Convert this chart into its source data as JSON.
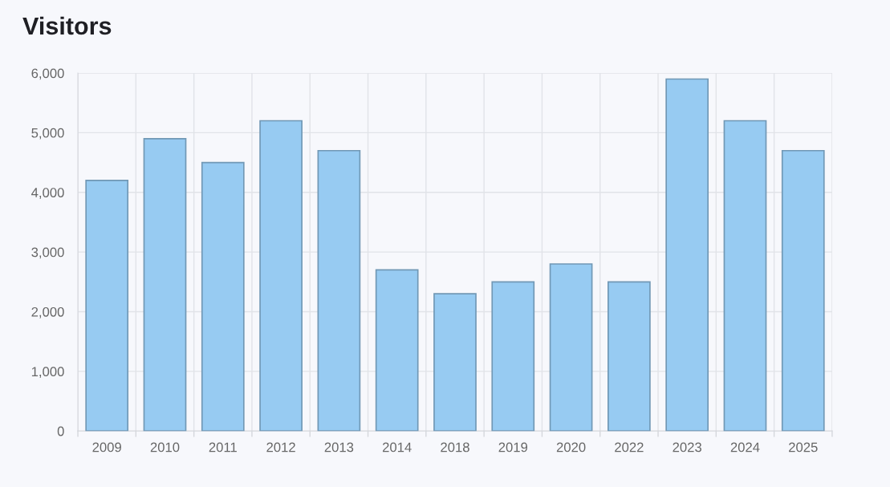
{
  "chart_data": {
    "type": "bar",
    "title": "Visitors",
    "categories": [
      "2009",
      "2010",
      "2011",
      "2012",
      "2013",
      "2014",
      "2018",
      "2019",
      "2020",
      "2022",
      "2023",
      "2024",
      "2025"
    ],
    "values": [
      4200,
      4900,
      4500,
      5200,
      4700,
      2700,
      2300,
      2500,
      2800,
      2500,
      5900,
      5200,
      4700
    ],
    "color": "#97cbf2",
    "ylim": [
      0,
      6000
    ],
    "yticks": [
      {
        "value": 0,
        "label": "0"
      },
      {
        "value": 1000,
        "label": "1,000"
      },
      {
        "value": 2000,
        "label": "2,000"
      },
      {
        "value": 3000,
        "label": "3,000"
      },
      {
        "value": 4000,
        "label": "4,000"
      },
      {
        "value": 5000,
        "label": "5,000"
      },
      {
        "value": 6000,
        "label": "6,000"
      }
    ],
    "grid": true
  }
}
